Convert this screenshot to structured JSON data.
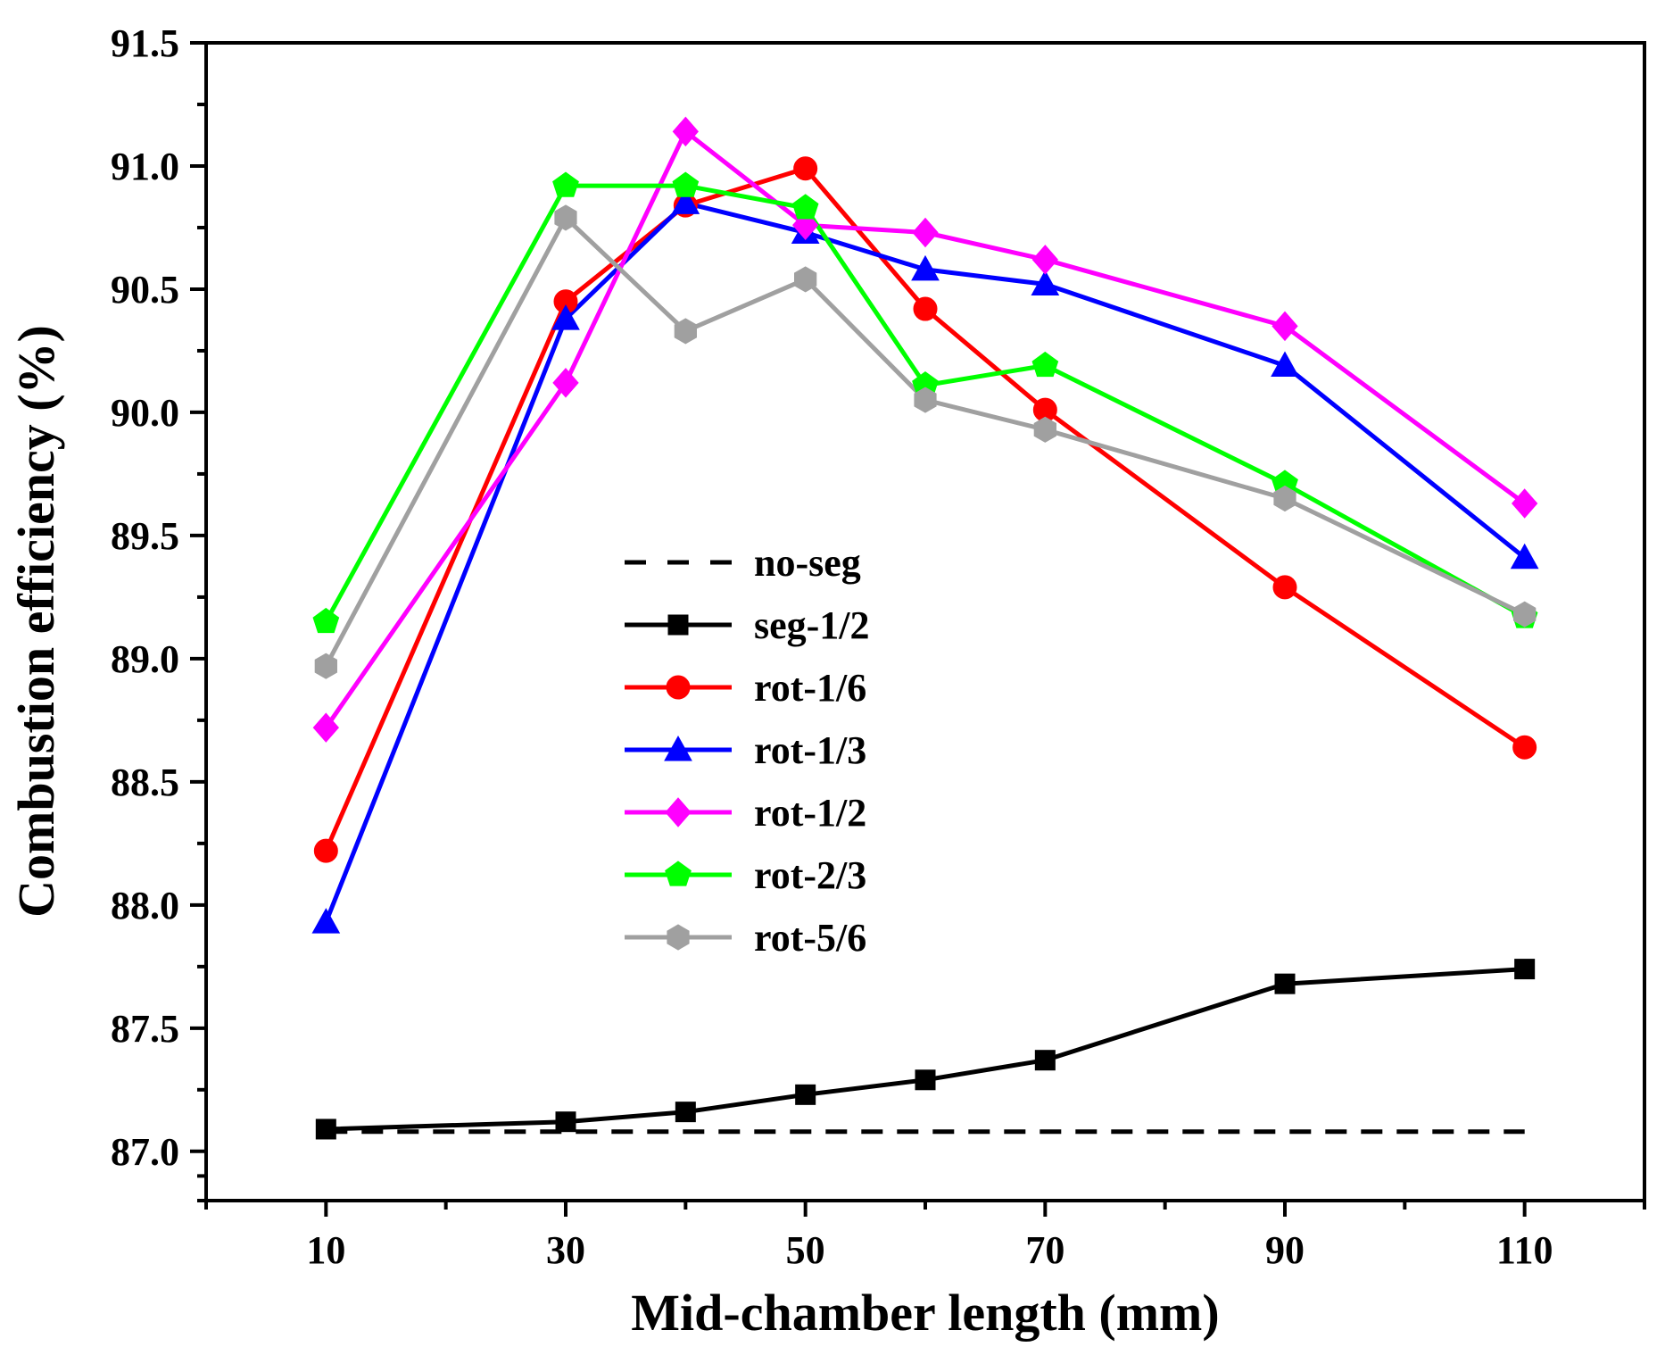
{
  "chart_data": {
    "type": "line",
    "xlabel": "Mid-chamber length (mm)",
    "ylabel": "Combustion efficiency (%)",
    "xlim": [
      0,
      120
    ],
    "ylim": [
      86.8,
      91.5
    ],
    "xticks": [
      10,
      30,
      50,
      70,
      90,
      110
    ],
    "xtick_labels": [
      "10",
      "30",
      "50",
      "70",
      "90",
      "110"
    ],
    "yticks": [
      87.0,
      87.5,
      88.0,
      88.5,
      89.0,
      89.5,
      90.0,
      90.5,
      91.0,
      91.5
    ],
    "ytick_labels": [
      "87.0",
      "87.5",
      "88.0",
      "88.5",
      "89.0",
      "89.5",
      "90.0",
      "90.5",
      "91.0",
      "91.5"
    ],
    "legend_position": "center",
    "grid": false,
    "series": [
      {
        "name": "no-seg",
        "color": "#000000",
        "marker": "none",
        "dash": "dashed",
        "x": [
          10,
          110
        ],
        "values": [
          87.08,
          87.08
        ]
      },
      {
        "name": "seg-1/2",
        "color": "#000000",
        "marker": "square",
        "dash": "solid",
        "x": [
          10,
          30,
          40,
          50,
          60,
          70,
          90,
          110
        ],
        "values": [
          87.09,
          87.12,
          87.16,
          87.23,
          87.29,
          87.37,
          87.68,
          87.74
        ]
      },
      {
        "name": "rot-1/6",
        "color": "#ff0000",
        "marker": "circle",
        "dash": "solid",
        "x": [
          10,
          30,
          40,
          50,
          60,
          70,
          90,
          110
        ],
        "values": [
          88.22,
          90.45,
          90.84,
          90.99,
          90.42,
          90.01,
          89.29,
          88.64
        ]
      },
      {
        "name": "rot-1/3",
        "color": "#0000ff",
        "marker": "triangle",
        "dash": "solid",
        "x": [
          10,
          30,
          40,
          50,
          60,
          70,
          90,
          110
        ],
        "values": [
          87.93,
          90.38,
          90.85,
          90.73,
          90.58,
          90.52,
          90.19,
          89.41
        ]
      },
      {
        "name": "rot-1/2",
        "color": "#ff00ff",
        "marker": "diamond",
        "dash": "solid",
        "x": [
          10,
          30,
          40,
          50,
          60,
          70,
          90,
          110
        ],
        "values": [
          88.72,
          90.12,
          91.14,
          90.76,
          90.73,
          90.62,
          90.35,
          89.63
        ]
      },
      {
        "name": "rot-2/3",
        "color": "#00ff00",
        "marker": "pentagon",
        "dash": "solid",
        "x": [
          10,
          30,
          40,
          50,
          60,
          70,
          90,
          110
        ],
        "values": [
          89.15,
          90.92,
          90.92,
          90.83,
          90.11,
          90.19,
          89.71,
          89.17
        ]
      },
      {
        "name": "rot-5/6",
        "color": "#a0a0a0",
        "marker": "hexagon",
        "dash": "solid",
        "x": [
          10,
          30,
          40,
          50,
          60,
          70,
          90,
          110
        ],
        "values": [
          88.97,
          90.79,
          90.33,
          90.54,
          90.05,
          89.93,
          89.65,
          89.18
        ]
      }
    ]
  }
}
